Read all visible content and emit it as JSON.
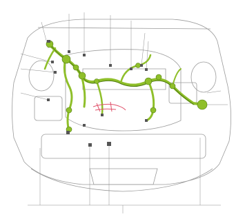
{
  "colors": {
    "background": "#ffffff",
    "outline": "#9a9a9a",
    "leader": "#8a8a8a",
    "harness": "#8fbf2a",
    "harness_dark": "#4f7a12",
    "connector": "#555555",
    "highlight": "#e0506a"
  },
  "labels": [],
  "bottom_labels": []
}
